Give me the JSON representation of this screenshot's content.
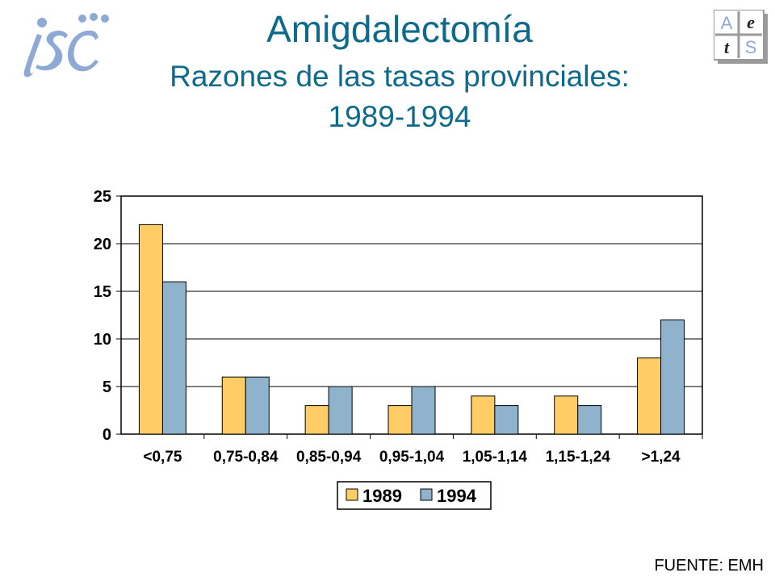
{
  "header": {
    "title": "Amigdalectomía",
    "subtitle": "Razones de las tasas provinciales:",
    "years": "1989-1994",
    "logo_left": "isc",
    "logo_right": {
      "cells": [
        "A",
        "e",
        "t",
        "S"
      ]
    }
  },
  "source": "FUENTE: EMH",
  "colors": {
    "title": "#0e6a8a",
    "series_1989": "#ffcc66",
    "series_1994": "#8fb3cc",
    "grid": "#000000"
  },
  "chart_data": {
    "type": "bar",
    "categories": [
      "<0,75",
      "0,75-0,84",
      "0,85-0,94",
      "0,95-1,04",
      "1,05-1,14",
      "1,15-1,24",
      ">1,24"
    ],
    "series": [
      {
        "name": "1989",
        "values": [
          22,
          6,
          3,
          3,
          4,
          4,
          8
        ]
      },
      {
        "name": "1994",
        "values": [
          16,
          6,
          5,
          5,
          3,
          3,
          12
        ]
      }
    ],
    "ylim": [
      0,
      25
    ],
    "yticks": [
      0,
      5,
      10,
      15,
      20,
      25
    ],
    "grid": true,
    "legend": "bottom"
  }
}
